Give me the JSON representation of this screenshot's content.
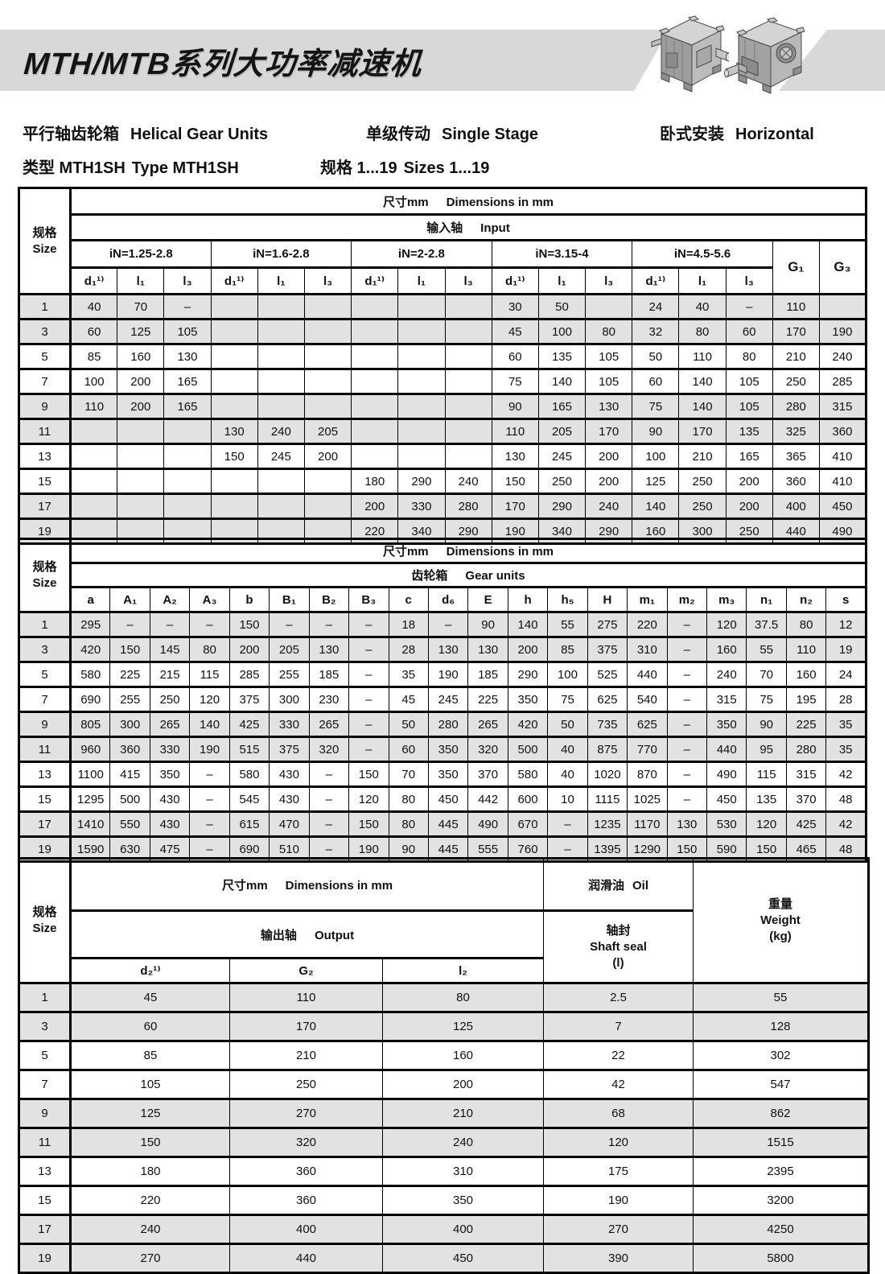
{
  "header": {
    "banner_title": "MTH/MTB系列大功率减速机",
    "illustrations": [
      "gearbox-3d-view-left",
      "gearbox-3d-view-right"
    ],
    "subtitle_line1": [
      {
        "zh": "平行轴齿轮箱",
        "en": "Helical Gear Units"
      },
      {
        "zh": "单级传动",
        "en": "Single Stage"
      },
      {
        "zh": "卧式安装",
        "en": "Horizontal"
      }
    ],
    "subtitle_line2": [
      {
        "zh": "类型 MTH1SH",
        "en": "Type MTH1SH"
      },
      {
        "zh": "规格 1...19",
        "en": "Sizes 1...19"
      }
    ]
  },
  "colors": {
    "banner_gray": "#d8d8d8",
    "row_shade": "#e2e2e2",
    "border_black": "#000000"
  },
  "table_input": {
    "size": {
      "zh": "规格",
      "en": "Size"
    },
    "dims": {
      "zh": "尺寸mm",
      "en": "Dimensions in mm"
    },
    "group": {
      "zh": "输入轴",
      "en": "Input"
    },
    "in_groups": [
      "iN=1.25-2.8",
      "iN=1.6-2.8",
      "iN=2-2.8",
      "iN=3.15-4",
      "iN=4.5-5.6"
    ],
    "g1": "G₁",
    "g3": "G₃",
    "col_headers": [
      "d₁¹⁾",
      "l₁",
      "l₃",
      "d₁¹⁾",
      "l₁",
      "l₃",
      "d₁¹⁾",
      "l₁",
      "l₃",
      "d₁¹⁾",
      "l₁",
      "l₃",
      "d₁¹⁾",
      "l₁",
      "l₃"
    ],
    "rows": [
      {
        "size": "1",
        "cells": [
          "40",
          "70",
          "–",
          "",
          "",
          "",
          "",
          "",
          "",
          "30",
          "50",
          "",
          "24",
          "40",
          "–",
          "110",
          ""
        ]
      },
      {
        "size": "3",
        "cells": [
          "60",
          "125",
          "105",
          "",
          "",
          "",
          "",
          "",
          "",
          "45",
          "100",
          "80",
          "32",
          "80",
          "60",
          "170",
          "190"
        ]
      },
      {
        "size": "5",
        "cells": [
          "85",
          "160",
          "130",
          "",
          "",
          "",
          "",
          "",
          "",
          "60",
          "135",
          "105",
          "50",
          "110",
          "80",
          "210",
          "240"
        ]
      },
      {
        "size": "7",
        "cells": [
          "100",
          "200",
          "165",
          "",
          "",
          "",
          "",
          "",
          "",
          "75",
          "140",
          "105",
          "60",
          "140",
          "105",
          "250",
          "285"
        ]
      },
      {
        "size": "9",
        "cells": [
          "110",
          "200",
          "165",
          "",
          "",
          "",
          "",
          "",
          "",
          "90",
          "165",
          "130",
          "75",
          "140",
          "105",
          "280",
          "315"
        ]
      },
      {
        "size": "11",
        "cells": [
          "",
          "",
          "",
          "130",
          "240",
          "205",
          "",
          "",
          "",
          "110",
          "205",
          "170",
          "90",
          "170",
          "135",
          "325",
          "360"
        ]
      },
      {
        "size": "13",
        "cells": [
          "",
          "",
          "",
          "150",
          "245",
          "200",
          "",
          "",
          "",
          "130",
          "245",
          "200",
          "100",
          "210",
          "165",
          "365",
          "410"
        ]
      },
      {
        "size": "15",
        "cells": [
          "",
          "",
          "",
          "",
          "",
          "",
          "180",
          "290",
          "240",
          "150",
          "250",
          "200",
          "125",
          "250",
          "200",
          "360",
          "410"
        ]
      },
      {
        "size": "17",
        "cells": [
          "",
          "",
          "",
          "",
          "",
          "",
          "200",
          "330",
          "280",
          "170",
          "290",
          "240",
          "140",
          "250",
          "200",
          "400",
          "450"
        ]
      },
      {
        "size": "19",
        "cells": [
          "",
          "",
          "",
          "",
          "",
          "",
          "220",
          "340",
          "290",
          "190",
          "340",
          "290",
          "160",
          "300",
          "250",
          "440",
          "490"
        ]
      }
    ]
  },
  "table_gear": {
    "size": {
      "zh": "规格",
      "en": "Size"
    },
    "dims": {
      "zh": "尺寸mm",
      "en": "Dimensions in mm"
    },
    "group": {
      "zh": "齿轮箱",
      "en": "Gear units"
    },
    "col_headers": [
      "a",
      "A₁",
      "A₂",
      "A₃",
      "b",
      "B₁",
      "B₂",
      "B₃",
      "c",
      "d₆",
      "E",
      "h",
      "h₅",
      "H",
      "m₁",
      "m₂",
      "m₃",
      "n₁",
      "n₂",
      "s"
    ],
    "rows": [
      {
        "size": "1",
        "cells": [
          "295",
          "–",
          "–",
          "–",
          "150",
          "–",
          "–",
          "–",
          "18",
          "–",
          "90",
          "140",
          "55",
          "275",
          "220",
          "–",
          "120",
          "37.5",
          "80",
          "12"
        ]
      },
      {
        "size": "3",
        "cells": [
          "420",
          "150",
          "145",
          "80",
          "200",
          "205",
          "130",
          "–",
          "28",
          "130",
          "130",
          "200",
          "85",
          "375",
          "310",
          "–",
          "160",
          "55",
          "110",
          "19"
        ]
      },
      {
        "size": "5",
        "cells": [
          "580",
          "225",
          "215",
          "115",
          "285",
          "255",
          "185",
          "–",
          "35",
          "190",
          "185",
          "290",
          "100",
          "525",
          "440",
          "–",
          "240",
          "70",
          "160",
          "24"
        ]
      },
      {
        "size": "7",
        "cells": [
          "690",
          "255",
          "250",
          "120",
          "375",
          "300",
          "230",
          "–",
          "45",
          "245",
          "225",
          "350",
          "75",
          "625",
          "540",
          "–",
          "315",
          "75",
          "195",
          "28"
        ]
      },
      {
        "size": "9",
        "cells": [
          "805",
          "300",
          "265",
          "140",
          "425",
          "330",
          "265",
          "–",
          "50",
          "280",
          "265",
          "420",
          "50",
          "735",
          "625",
          "–",
          "350",
          "90",
          "225",
          "35"
        ]
      },
      {
        "size": "11",
        "cells": [
          "960",
          "360",
          "330",
          "190",
          "515",
          "375",
          "320",
          "–",
          "60",
          "350",
          "320",
          "500",
          "40",
          "875",
          "770",
          "–",
          "440",
          "95",
          "280",
          "35"
        ]
      },
      {
        "size": "13",
        "cells": [
          "1100",
          "415",
          "350",
          "–",
          "580",
          "430",
          "–",
          "150",
          "70",
          "350",
          "370",
          "580",
          "40",
          "1020",
          "870",
          "–",
          "490",
          "115",
          "315",
          "42"
        ]
      },
      {
        "size": "15",
        "cells": [
          "1295",
          "500",
          "430",
          "–",
          "545",
          "430",
          "–",
          "120",
          "80",
          "450",
          "442",
          "600",
          "10",
          "1115",
          "1025",
          "–",
          "450",
          "135",
          "370",
          "48"
        ]
      },
      {
        "size": "17",
        "cells": [
          "1410",
          "550",
          "430",
          "–",
          "615",
          "470",
          "–",
          "150",
          "80",
          "445",
          "490",
          "670",
          "–",
          "1235",
          "1170",
          "130",
          "530",
          "120",
          "425",
          "42"
        ]
      },
      {
        "size": "19",
        "cells": [
          "1590",
          "630",
          "475",
          "–",
          "690",
          "510",
          "–",
          "190",
          "90",
          "445",
          "555",
          "760",
          "–",
          "1395",
          "1290",
          "150",
          "590",
          "150",
          "465",
          "48"
        ]
      }
    ]
  },
  "table_output": {
    "size": {
      "zh": "规格",
      "en": "Size"
    },
    "dims": {
      "zh": "尺寸mm",
      "en": "Dimensions in mm"
    },
    "group": {
      "zh": "输出轴",
      "en": "Output"
    },
    "col_headers": [
      "d₂¹⁾",
      "G₂",
      "l₂"
    ],
    "oil": {
      "zh": "润滑油",
      "en": "Oil",
      "seal_zh": "轴封",
      "seal_en": "Shaft seal",
      "unit": "(l)"
    },
    "weight": {
      "zh": "重量",
      "en": "Weight",
      "unit": "(kg)"
    },
    "rows": [
      {
        "size": "1",
        "cells": [
          "45",
          "110",
          "80",
          "2.5",
          "55"
        ]
      },
      {
        "size": "3",
        "cells": [
          "60",
          "170",
          "125",
          "7",
          "128"
        ]
      },
      {
        "size": "5",
        "cells": [
          "85",
          "210",
          "160",
          "22",
          "302"
        ]
      },
      {
        "size": "7",
        "cells": [
          "105",
          "250",
          "200",
          "42",
          "547"
        ]
      },
      {
        "size": "9",
        "cells": [
          "125",
          "270",
          "210",
          "68",
          "862"
        ]
      },
      {
        "size": "11",
        "cells": [
          "150",
          "320",
          "240",
          "120",
          "1515"
        ]
      },
      {
        "size": "13",
        "cells": [
          "180",
          "360",
          "310",
          "175",
          "2395"
        ]
      },
      {
        "size": "15",
        "cells": [
          "220",
          "360",
          "350",
          "190",
          "3200"
        ]
      },
      {
        "size": "17",
        "cells": [
          "240",
          "400",
          "400",
          "270",
          "4250"
        ]
      },
      {
        "size": "19",
        "cells": [
          "270",
          "440",
          "450",
          "390",
          "5800"
        ]
      }
    ]
  }
}
